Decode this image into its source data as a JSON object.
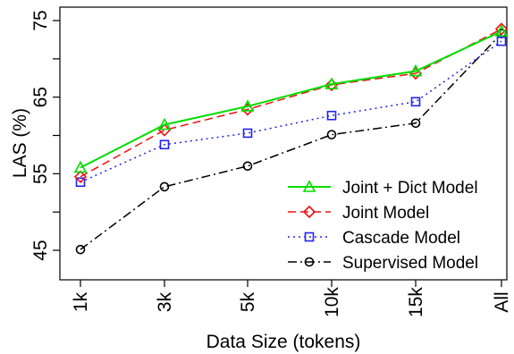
{
  "chart_data": {
    "type": "line",
    "xlabel": "Data Size (tokens)",
    "ylabel": "LAS (%)",
    "categories": [
      "1k",
      "3k",
      "5k",
      "10k",
      "15k",
      "All"
    ],
    "yticks": [
      45,
      55,
      65,
      75
    ],
    "ylim": [
      42,
      76
    ],
    "grid": false,
    "legend_position": "bottom-right",
    "series": [
      {
        "name": "Joint + Dict Model",
        "color": "#00dd00",
        "marker": "triangle",
        "dash": "solid",
        "values": [
          55.8,
          61.4,
          63.8,
          66.7,
          68.4,
          73.6
        ]
      },
      {
        "name": "Joint Model",
        "color": "#ee1111",
        "marker": "diamond",
        "dash": "dashed",
        "values": [
          54.6,
          60.7,
          63.4,
          66.6,
          68.1,
          73.9
        ]
      },
      {
        "name": "Cascade Model",
        "color": "#2222ee",
        "marker": "square",
        "dash": "dotted",
        "values": [
          53.9,
          58.8,
          60.3,
          62.6,
          64.4,
          72.3
        ]
      },
      {
        "name": "Supervised Model",
        "color": "#000000",
        "marker": "circle",
        "dash": "dashdot",
        "values": [
          45.1,
          53.3,
          56.0,
          60.1,
          61.6,
          73.3
        ]
      }
    ]
  }
}
